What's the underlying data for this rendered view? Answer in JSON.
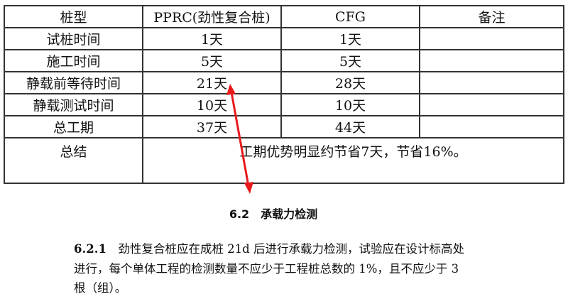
{
  "table": {
    "headers": [
      "桩型",
      "PPRC(劲性复合桩)",
      "CFG",
      "备注"
    ],
    "rows": [
      [
        "试桩时间",
        "1天",
        "1天",
        ""
      ],
      [
        "施工时间",
        "5天",
        "5天",
        ""
      ],
      [
        "静载前等待时间",
        "21天",
        "28天",
        ""
      ],
      [
        "静载测试时间",
        "10天",
        "10天",
        ""
      ],
      [
        "总工期",
        "37天",
        "44天",
        ""
      ]
    ],
    "summary_label": "总结",
    "summary_text": "工期优势明显约节省7天，节省16%。"
  },
  "annotation": {
    "arrow_color": "#e8191c"
  },
  "excerpt": {
    "heading": "6.2　承载力检测",
    "clause_number": "6.2.1",
    "clause_text": "劲性复合桩应在成桩 21d 后进行承载力检测，试验应在设计标高处进行，每个单体工程的检测数量不应少于工程桩总数的 1%，且不应少于 3 根（组）。"
  }
}
